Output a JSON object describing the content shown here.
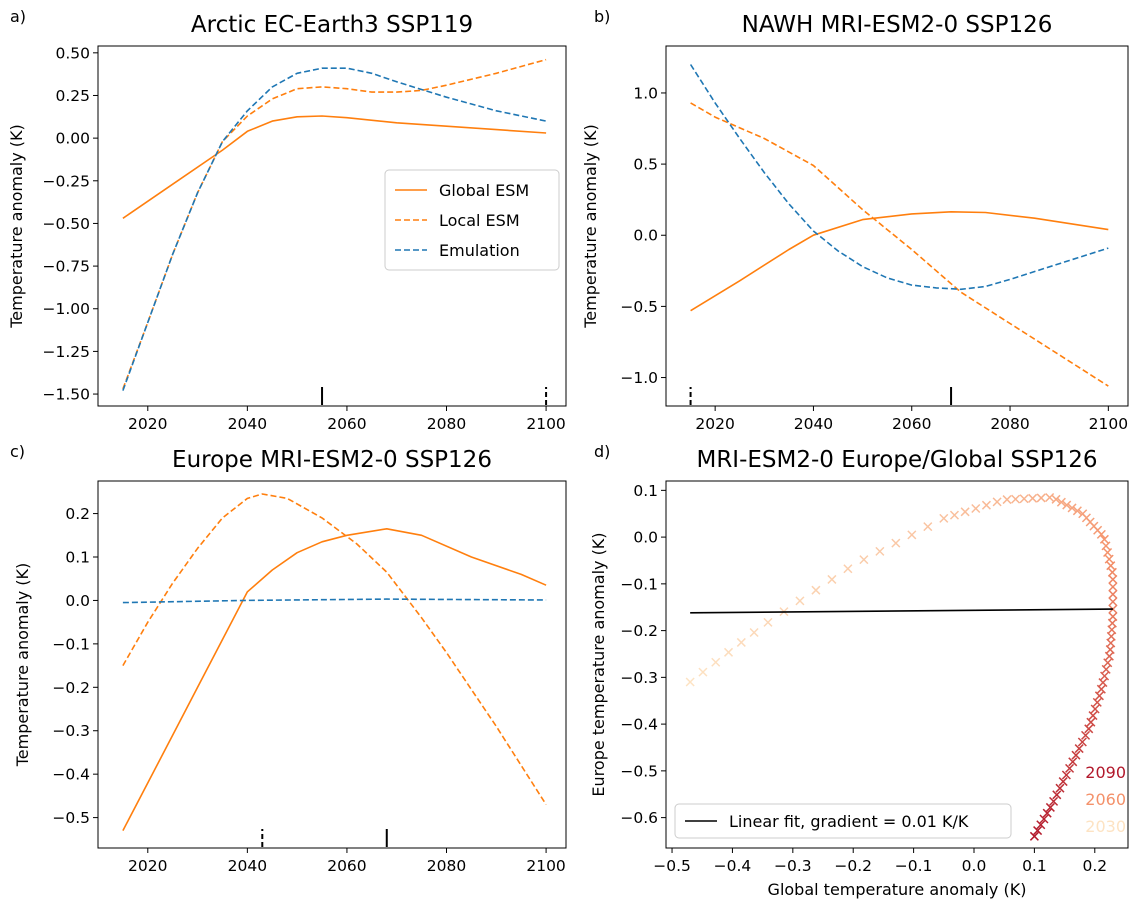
{
  "colors": {
    "global": "#ff7f0e",
    "local": "#ff7f0e",
    "emulation": "#1f77b4",
    "fit": "#000000",
    "year_2090": "#b2182b",
    "year_2060": "#f4916a",
    "year_2030": "#fde3c3"
  },
  "chart_data": [
    {
      "type": "line",
      "panel_label": "a)",
      "title": "Arctic EC-Earth3 SSP119",
      "xlabel": "",
      "ylabel": "Temperature anomaly (K)",
      "xlim": [
        2010,
        2104
      ],
      "ylim": [
        -1.57,
        0.54
      ],
      "xticks": [
        2020,
        2040,
        2060,
        2080,
        2100
      ],
      "yticks": [
        -1.5,
        -1.25,
        -1.0,
        -0.75,
        -0.5,
        -0.25,
        0.0,
        0.25,
        0.5
      ],
      "ytick_labels": [
        "−1.50",
        "−1.25",
        "−1.00",
        "−0.75",
        "−0.50",
        "−0.25",
        "0.00",
        "0.25",
        "0.50"
      ],
      "legend": [
        "Global ESM",
        "Local ESM",
        "Emulation"
      ],
      "legend_position": "center-right",
      "series": [
        {
          "name": "Global ESM",
          "style": "solid",
          "color": "global",
          "x": [
            2015,
            2025,
            2035,
            2040,
            2045,
            2050,
            2055,
            2060,
            2070,
            2080,
            2090,
            2100
          ],
          "y": [
            -0.47,
            -0.27,
            -0.07,
            0.04,
            0.1,
            0.125,
            0.13,
            0.12,
            0.09,
            0.07,
            0.05,
            0.03
          ]
        },
        {
          "name": "Local ESM",
          "style": "dashed",
          "color": "local",
          "x": [
            2015,
            2020,
            2025,
            2030,
            2035,
            2040,
            2045,
            2050,
            2055,
            2060,
            2065,
            2070,
            2075,
            2080,
            2090,
            2100
          ],
          "y": [
            -1.47,
            -1.08,
            -0.68,
            -0.32,
            -0.02,
            0.13,
            0.23,
            0.29,
            0.3,
            0.29,
            0.27,
            0.27,
            0.28,
            0.31,
            0.38,
            0.46
          ]
        },
        {
          "name": "Emulation",
          "style": "dashed",
          "color": "emulation",
          "x": [
            2015,
            2020,
            2025,
            2030,
            2035,
            2040,
            2045,
            2050,
            2055,
            2060,
            2065,
            2070,
            2080,
            2090,
            2100
          ],
          "y": [
            -1.48,
            -1.08,
            -0.68,
            -0.32,
            -0.02,
            0.16,
            0.3,
            0.38,
            0.41,
            0.41,
            0.38,
            0.33,
            0.24,
            0.16,
            0.1
          ]
        }
      ],
      "markers": [
        {
          "x": 2055,
          "style": "solid"
        },
        {
          "x": 2100,
          "style": "dashed"
        }
      ]
    },
    {
      "type": "line",
      "panel_label": "b)",
      "title": "NAWH MRI-ESM2-0 SSP126",
      "xlabel": "",
      "ylabel": "Temperature anomaly (K)",
      "xlim": [
        2010,
        2104
      ],
      "ylim": [
        -1.2,
        1.33
      ],
      "xticks": [
        2020,
        2040,
        2060,
        2080,
        2100
      ],
      "yticks": [
        -1.0,
        -0.5,
        0.0,
        0.5,
        1.0
      ],
      "ytick_labels": [
        "−1.0",
        "−0.5",
        "0.0",
        "0.5",
        "1.0"
      ],
      "series": [
        {
          "name": "Global ESM",
          "style": "solid",
          "color": "global",
          "x": [
            2015,
            2025,
            2035,
            2040,
            2050,
            2060,
            2068,
            2075,
            2085,
            2100
          ],
          "y": [
            -0.53,
            -0.32,
            -0.1,
            0.0,
            0.11,
            0.15,
            0.165,
            0.16,
            0.12,
            0.04
          ]
        },
        {
          "name": "Local ESM",
          "style": "dashed",
          "color": "local",
          "x": [
            2015,
            2020,
            2030,
            2040,
            2050,
            2060,
            2070,
            2080,
            2090,
            2100
          ],
          "y": [
            0.93,
            0.83,
            0.68,
            0.49,
            0.18,
            -0.1,
            -0.4,
            -0.62,
            -0.84,
            -1.06
          ]
        },
        {
          "name": "Emulation",
          "style": "dashed",
          "color": "emulation",
          "x": [
            2015,
            2020,
            2025,
            2030,
            2035,
            2040,
            2045,
            2050,
            2055,
            2060,
            2065,
            2070,
            2075,
            2080,
            2090,
            2100
          ],
          "y": [
            1.2,
            0.93,
            0.68,
            0.44,
            0.22,
            0.03,
            -0.11,
            -0.22,
            -0.3,
            -0.35,
            -0.37,
            -0.38,
            -0.36,
            -0.31,
            -0.2,
            -0.09
          ]
        }
      ],
      "markers": [
        {
          "x": 2015,
          "style": "dashed"
        },
        {
          "x": 2068,
          "style": "solid"
        }
      ]
    },
    {
      "type": "line",
      "panel_label": "c)",
      "title": "Europe MRI-ESM2-0 SSP126",
      "xlabel": "",
      "ylabel": "Temperature anomaly (K)",
      "xlim": [
        2010,
        2104
      ],
      "ylim": [
        -0.57,
        0.275
      ],
      "xticks": [
        2020,
        2040,
        2060,
        2080,
        2100
      ],
      "yticks": [
        -0.5,
        -0.4,
        -0.3,
        -0.2,
        -0.1,
        0.0,
        0.1,
        0.2
      ],
      "ytick_labels": [
        "−0.5",
        "−0.4",
        "−0.3",
        "−0.2",
        "−0.1",
        "0.0",
        "0.1",
        "0.2"
      ],
      "series": [
        {
          "name": "Global ESM",
          "style": "solid",
          "color": "global",
          "x": [
            2015,
            2020,
            2025,
            2030,
            2035,
            2040,
            2045,
            2050,
            2055,
            2060,
            2068,
            2075,
            2085,
            2095,
            2100
          ],
          "y": [
            -0.53,
            -0.42,
            -0.31,
            -0.2,
            -0.09,
            0.02,
            0.07,
            0.11,
            0.135,
            0.15,
            0.165,
            0.15,
            0.1,
            0.06,
            0.035
          ]
        },
        {
          "name": "Local ESM",
          "style": "dashed",
          "color": "local",
          "x": [
            2015,
            2020,
            2025,
            2030,
            2035,
            2040,
            2043,
            2048,
            2055,
            2062,
            2068,
            2075,
            2080,
            2090,
            2100
          ],
          "y": [
            -0.15,
            -0.05,
            0.04,
            0.12,
            0.19,
            0.235,
            0.245,
            0.235,
            0.19,
            0.13,
            0.065,
            -0.04,
            -0.12,
            -0.29,
            -0.47
          ]
        },
        {
          "name": "Emulation",
          "style": "dashed",
          "color": "emulation",
          "x": [
            2015,
            2040,
            2068,
            2100
          ],
          "y": [
            -0.005,
            0.0,
            0.003,
            0.001
          ]
        }
      ],
      "markers": [
        {
          "x": 2043,
          "style": "dashed"
        },
        {
          "x": 2068,
          "style": "solid"
        }
      ]
    },
    {
      "type": "scatter",
      "panel_label": "d)",
      "title": "MRI-ESM2-0 Europe/Global SSP126",
      "xlabel": "Global temperature anomaly (K)",
      "ylabel": "Europe temperature anomaly (K)",
      "xlim": [
        -0.51,
        0.255
      ],
      "ylim": [
        -0.665,
        0.12
      ],
      "xticks": [
        -0.5,
        -0.4,
        -0.3,
        -0.2,
        -0.1,
        0.0,
        0.1,
        0.2
      ],
      "xtick_labels": [
        "−0.5",
        "−0.4",
        "−0.3",
        "−0.2",
        "−0.1",
        "0.0",
        "0.1",
        "0.2"
      ],
      "yticks": [
        -0.6,
        -0.5,
        -0.4,
        -0.3,
        -0.2,
        -0.1,
        0.0,
        0.1
      ],
      "ytick_labels": [
        "−0.6",
        "−0.5",
        "−0.4",
        "−0.3",
        "−0.2",
        "−0.1",
        "0.0",
        "0.1"
      ],
      "scatter_path": {
        "year_start": 2015,
        "year_end": 2100,
        "marker": "x",
        "x": [
          -0.47,
          -0.35,
          -0.2,
          -0.05,
          0.05,
          0.13,
          0.18,
          0.215,
          0.23,
          0.23,
          0.225,
          0.21,
          0.19,
          0.16,
          0.13,
          0.1
        ],
        "y": [
          -0.31,
          -0.19,
          -0.06,
          0.04,
          0.08,
          0.085,
          0.05,
          0.0,
          -0.08,
          -0.17,
          -0.25,
          -0.33,
          -0.41,
          -0.49,
          -0.57,
          -0.64
        ]
      },
      "fit_line": {
        "name": "Linear fit, gradient = 0.01 K/K",
        "x": [
          -0.47,
          0.23
        ],
        "y": [
          -0.162,
          -0.154
        ]
      },
      "legend": [
        "Linear fit, gradient = 0.01 K/K"
      ],
      "legend_position": "lower-left",
      "year_labels": [
        {
          "text": "2090",
          "color": "year_2090"
        },
        {
          "text": "2060",
          "color": "year_2060"
        },
        {
          "text": "2030",
          "color": "year_2030"
        }
      ]
    }
  ]
}
